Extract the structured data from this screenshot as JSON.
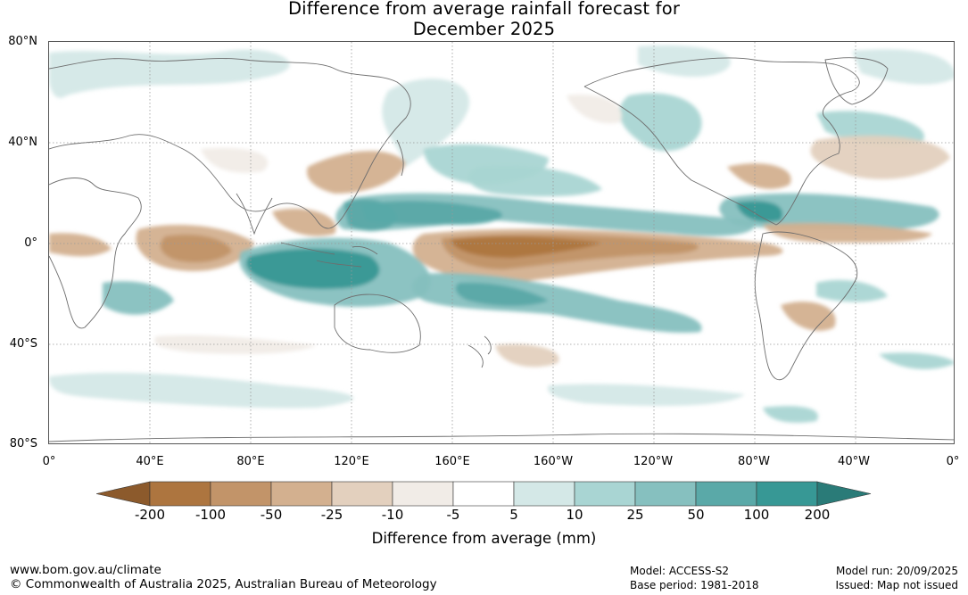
{
  "title": {
    "line1": "Difference from average rainfall forecast for",
    "line2": "December 2025"
  },
  "latitude_labels": [
    "80°N",
    "40°N",
    "0°",
    "40°S",
    "80°S"
  ],
  "longitude_labels": [
    "0°",
    "40°E",
    "80°E",
    "120°E",
    "160°E",
    "160°W",
    "120°W",
    "80°W",
    "40°W",
    "0°"
  ],
  "legend": {
    "title": "Difference from average (mm)",
    "ticks": [
      "-200",
      "-100",
      "-50",
      "-25",
      "-10",
      "-5",
      "5",
      "10",
      "25",
      "50",
      "100",
      "200"
    ],
    "colors": [
      "#8c5a2c",
      "#ad753f",
      "#c29469",
      "#d3b08f",
      "#e3d0be",
      "#f1ece7",
      "#ffffff",
      "#d4e8e7",
      "#a9d5d3",
      "#86c0bf",
      "#5aa9a8",
      "#379895",
      "#2a7b78"
    ]
  },
  "footer": {
    "url": "www.bom.gov.au/climate",
    "copyright": "© Commonwealth of Australia 2025, Australian Bureau of Meteorology",
    "model": "Model: ACCESS-S2",
    "base_period": "Base period: 1981-2018",
    "model_run": "Model run: 20/09/2025",
    "issued": "Issued: Map not issued"
  },
  "map": {
    "variable": "Rainfall difference from average",
    "units": "mm",
    "features": [
      {
        "name": "equatorial-pacific-dry-band",
        "category": "-100"
      },
      {
        "name": "central-indian-ocean-dry",
        "category": "-50"
      },
      {
        "name": "east-africa-dry",
        "category": "-25"
      },
      {
        "name": "maritime-continent-wet",
        "category": "100"
      },
      {
        "name": "south-pacific-convergence-wet",
        "category": "50"
      },
      {
        "name": "north-pacific-wet-band",
        "category": "50"
      },
      {
        "name": "north-tropical-atlantic-wet",
        "category": "50"
      },
      {
        "name": "north-atlantic-dry",
        "category": "-25"
      },
      {
        "name": "south-america-southeast-dry",
        "category": "-25"
      }
    ]
  }
}
